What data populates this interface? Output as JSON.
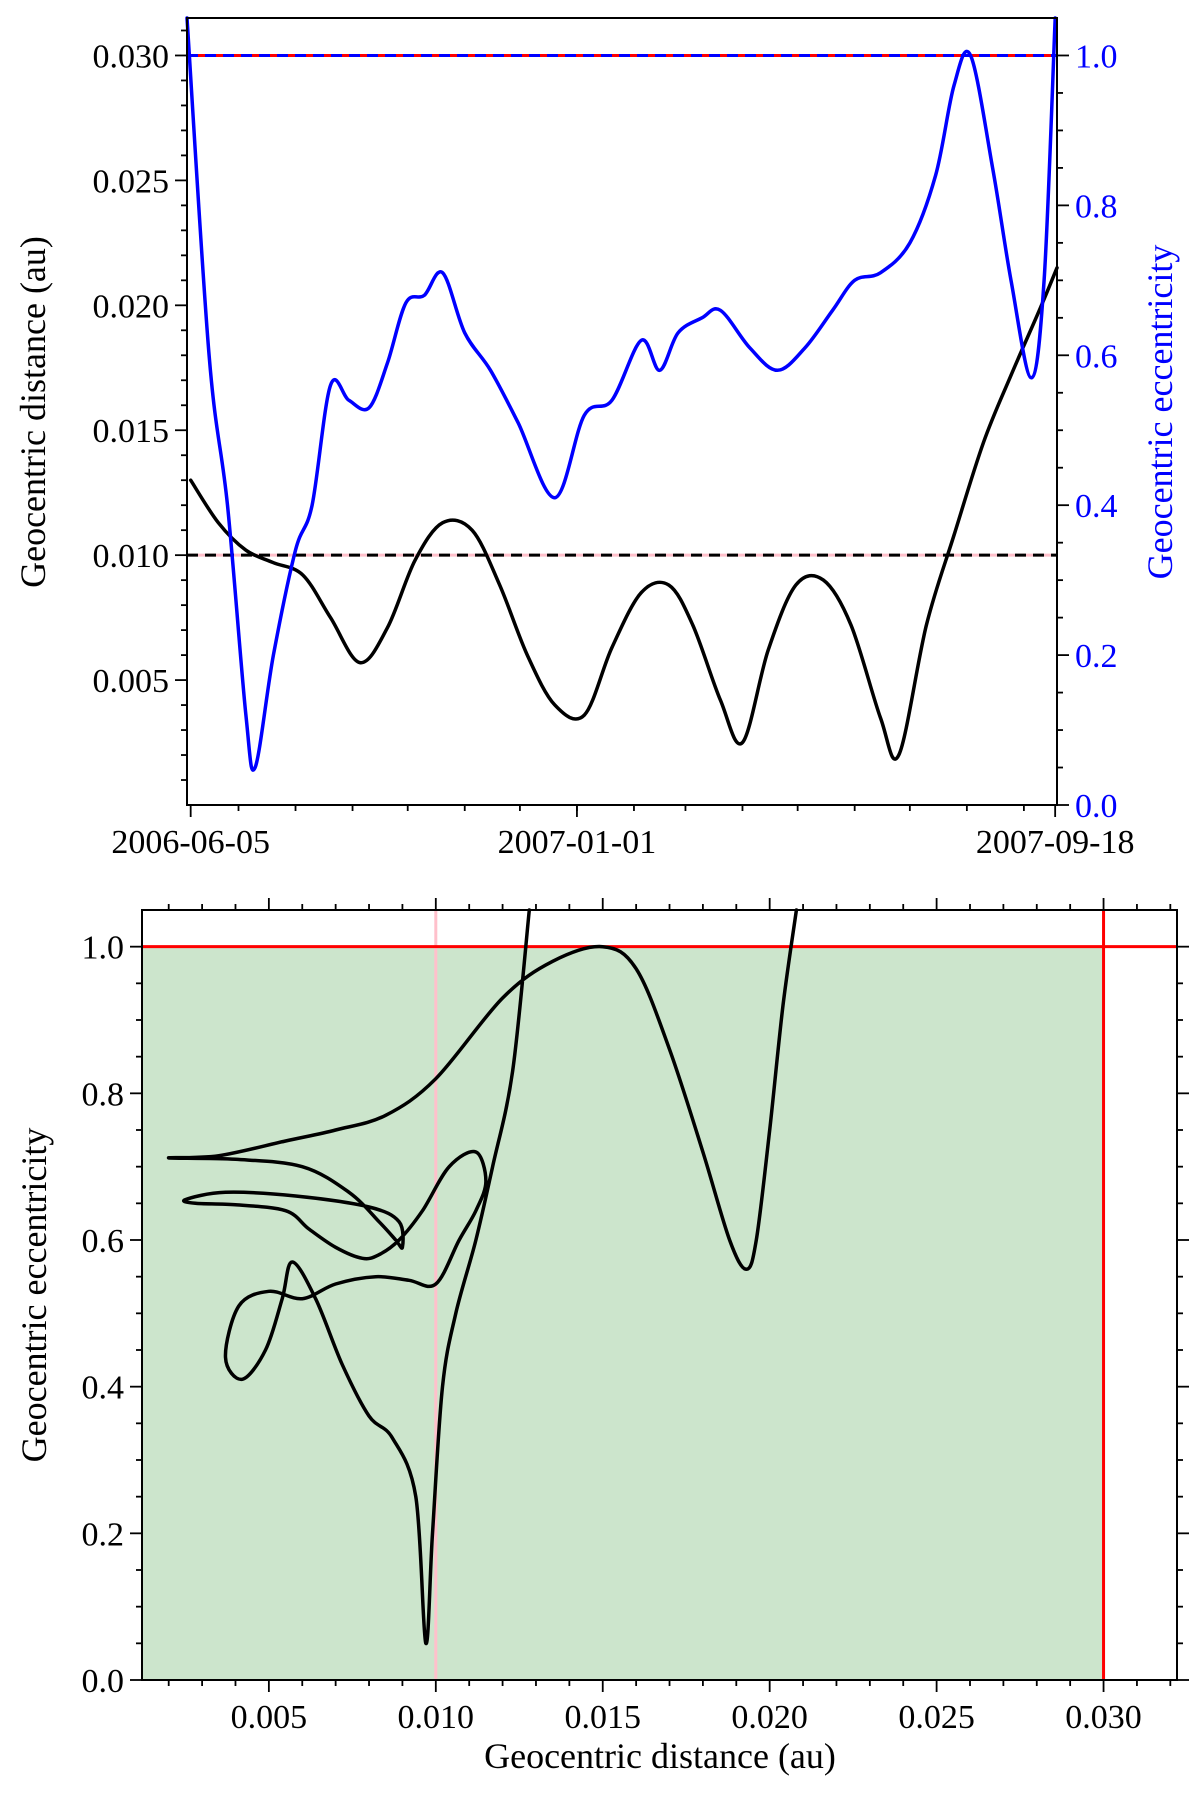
{
  "chart_data": [
    {
      "type": "line",
      "xlabel": "",
      "ylabel": "Geocentric distance (au)",
      "y2label": "Geocentric eccentricity",
      "xlim": [
        "2006-06-03",
        "2007-09-19"
      ],
      "ylim": [
        0,
        0.0315
      ],
      "y2lim": [
        0,
        1.05
      ],
      "xtick_labels": [
        "2006-06-05",
        "2007-01-01",
        "2007-09-18"
      ],
      "yticks": [
        0.005,
        0.01,
        0.015,
        0.02,
        0.025,
        0.03
      ],
      "y2ticks": [
        0.0,
        0.2,
        0.4,
        0.6,
        0.8,
        1.0
      ],
      "reference_lines": [
        {
          "axis": "y",
          "value": 0.03,
          "color": "#ff0000",
          "style": "solid"
        },
        {
          "axis": "y",
          "value": 0.03,
          "color": "#0000ff",
          "style": "dashed"
        },
        {
          "axis": "y",
          "value": 0.01,
          "color": "#ffc0cb",
          "style": "solid"
        },
        {
          "axis": "y",
          "value": 0.01,
          "color": "#000000",
          "style": "dashed"
        }
      ],
      "series": [
        {
          "axis": "left",
          "color": "#000000",
          "points": [
            [
              "2006-06-05",
              0.013
            ],
            [
              "2006-06-20",
              0.0113
            ],
            [
              "2006-07-05",
              0.0102
            ],
            [
              "2006-07-20",
              0.0097
            ],
            [
              "2006-08-05",
              0.0092
            ],
            [
              "2006-08-20",
              0.0075
            ],
            [
              "2006-09-05",
              0.0057
            ],
            [
              "2006-09-20",
              0.0071
            ],
            [
              "2006-10-05",
              0.0098
            ],
            [
              "2006-10-20",
              0.0113
            ],
            [
              "2006-11-05",
              0.011
            ],
            [
              "2006-11-20",
              0.0088
            ],
            [
              "2006-12-05",
              0.006
            ],
            [
              "2006-12-20",
              0.004
            ],
            [
              "2007-01-05",
              0.0036
            ],
            [
              "2007-01-20",
              0.0063
            ],
            [
              "2007-02-05",
              0.0085
            ],
            [
              "2007-02-20",
              0.0088
            ],
            [
              "2007-03-05",
              0.0072
            ],
            [
              "2007-03-20",
              0.0042
            ],
            [
              "2007-04-01",
              0.0025
            ],
            [
              "2007-04-15",
              0.0062
            ],
            [
              "2007-04-30",
              0.0088
            ],
            [
              "2007-05-15",
              0.009
            ],
            [
              "2007-05-30",
              0.0072
            ],
            [
              "2007-06-15",
              0.0035
            ],
            [
              "2007-06-25",
              0.002
            ],
            [
              "2007-07-10",
              0.0072
            ],
            [
              "2007-07-25",
              0.0108
            ],
            [
              "2007-08-10",
              0.0145
            ],
            [
              "2007-08-25",
              0.0172
            ],
            [
              "2007-09-10",
              0.0199
            ],
            [
              "2007-09-19",
              0.0215
            ]
          ]
        },
        {
          "axis": "right",
          "color": "#0000ff",
          "points": [
            [
              "2006-06-03",
              1.05
            ],
            [
              "2006-06-15",
              0.6
            ],
            [
              "2006-06-25",
              0.4
            ],
            [
              "2006-07-05",
              0.12
            ],
            [
              "2006-07-10",
              0.05
            ],
            [
              "2006-07-20",
              0.2
            ],
            [
              "2006-08-01",
              0.34
            ],
            [
              "2006-08-10",
              0.4
            ],
            [
              "2006-08-20",
              0.56
            ],
            [
              "2006-08-30",
              0.54
            ],
            [
              "2006-09-10",
              0.53
            ],
            [
              "2006-09-20",
              0.59
            ],
            [
              "2006-09-30",
              0.67
            ],
            [
              "2006-10-10",
              0.68
            ],
            [
              "2006-10-20",
              0.71
            ],
            [
              "2006-11-01",
              0.63
            ],
            [
              "2006-11-15",
              0.58
            ],
            [
              "2006-11-30",
              0.51
            ],
            [
              "2006-12-20",
              0.41
            ],
            [
              "2007-01-05",
              0.52
            ],
            [
              "2007-01-20",
              0.54
            ],
            [
              "2007-02-05",
              0.62
            ],
            [
              "2007-02-15",
              0.58
            ],
            [
              "2007-02-25",
              0.63
            ],
            [
              "2007-03-10",
              0.65
            ],
            [
              "2007-03-20",
              0.66
            ],
            [
              "2007-04-05",
              0.61
            ],
            [
              "2007-04-20",
              0.58
            ],
            [
              "2007-05-05",
              0.61
            ],
            [
              "2007-05-20",
              0.66
            ],
            [
              "2007-06-01",
              0.7
            ],
            [
              "2007-06-15",
              0.71
            ],
            [
              "2007-07-01",
              0.75
            ],
            [
              "2007-07-15",
              0.84
            ],
            [
              "2007-07-25",
              0.96
            ],
            [
              "2007-08-03",
              1.0
            ],
            [
              "2007-08-15",
              0.85
            ],
            [
              "2007-08-25",
              0.7
            ],
            [
              "2007-09-05",
              0.57
            ],
            [
              "2007-09-12",
              0.7
            ],
            [
              "2007-09-18",
              1.05
            ]
          ]
        }
      ]
    },
    {
      "type": "line",
      "xlabel": "Geocentric distance (au)",
      "ylabel": "Geocentric eccentricity",
      "xlim": [
        0.0012,
        0.0322
      ],
      "ylim": [
        0,
        1.05
      ],
      "xticks": [
        0.005,
        0.01,
        0.015,
        0.02,
        0.025,
        0.03
      ],
      "xtick_labels": [
        "0.005",
        "0.010",
        "0.015",
        "0.020",
        "0.025",
        "0.030"
      ],
      "yticks": [
        0.0,
        0.2,
        0.4,
        0.6,
        0.8,
        1.0
      ],
      "ytick_labels": [
        "0.0",
        "0.2",
        "0.4",
        "0.6",
        "0.8",
        "1.0"
      ],
      "shaded_region": {
        "x": [
          0.0012,
          0.03
        ],
        "y": [
          0,
          1.0
        ],
        "color": "#cce5cc"
      },
      "reference_lines": [
        {
          "axis": "x",
          "value": 0.03,
          "color": "#ff0000"
        },
        {
          "axis": "x",
          "value": 0.01,
          "color": "#ffc0cb"
        },
        {
          "axis": "y",
          "value": 1.0,
          "color": "#ff0000"
        }
      ],
      "series": [
        {
          "color": "#000000",
          "points": [
            [
              0.0128,
              1.05
            ],
            [
              0.0123,
              0.83
            ],
            [
              0.0117,
              0.7
            ],
            [
              0.0112,
              0.6
            ],
            [
              0.0106,
              0.5
            ],
            [
              0.0102,
              0.4
            ],
            [
              0.0099,
              0.2
            ],
            [
              0.0097,
              0.05
            ],
            [
              0.0094,
              0.25
            ],
            [
              0.0087,
              0.33
            ],
            [
              0.008,
              0.36
            ],
            [
              0.0072,
              0.43
            ],
            [
              0.0064,
              0.52
            ],
            [
              0.0057,
              0.57
            ],
            [
              0.0054,
              0.52
            ],
            [
              0.0049,
              0.45
            ],
            [
              0.0042,
              0.41
            ],
            [
              0.0037,
              0.44
            ],
            [
              0.0041,
              0.51
            ],
            [
              0.005,
              0.53
            ],
            [
              0.006,
              0.52
            ],
            [
              0.007,
              0.54
            ],
            [
              0.0082,
              0.55
            ],
            [
              0.0092,
              0.545
            ],
            [
              0.01,
              0.54
            ],
            [
              0.0107,
              0.6
            ],
            [
              0.0112,
              0.64
            ],
            [
              0.0115,
              0.68
            ],
            [
              0.0112,
              0.72
            ],
            [
              0.0104,
              0.7
            ],
            [
              0.0096,
              0.64
            ],
            [
              0.0089,
              0.6
            ],
            [
              0.0083,
              0.58
            ],
            [
              0.0078,
              0.575
            ],
            [
              0.007,
              0.59
            ],
            [
              0.0062,
              0.615
            ],
            [
              0.0055,
              0.64
            ],
            [
              0.004,
              0.648
            ],
            [
              0.0028,
              0.65
            ],
            [
              0.0025,
              0.655
            ],
            [
              0.0037,
              0.665
            ],
            [
              0.0058,
              0.66
            ],
            [
              0.008,
              0.645
            ],
            [
              0.0089,
              0.625
            ],
            [
              0.009,
              0.59
            ],
            [
              0.0088,
              0.6
            ],
            [
              0.0083,
              0.625
            ],
            [
              0.0074,
              0.665
            ],
            [
              0.006,
              0.7
            ],
            [
              0.004,
              0.71
            ],
            [
              0.002,
              0.712
            ],
            [
              0.0035,
              0.715
            ],
            [
              0.0055,
              0.735
            ],
            [
              0.007,
              0.75
            ],
            [
              0.0085,
              0.77
            ],
            [
              0.01,
              0.82
            ],
            [
              0.012,
              0.93
            ],
            [
              0.0135,
              0.98
            ],
            [
              0.015,
              1.0
            ],
            [
              0.016,
              0.97
            ],
            [
              0.017,
              0.86
            ],
            [
              0.018,
              0.72
            ],
            [
              0.0188,
              0.6
            ],
            [
              0.0193,
              0.56
            ],
            [
              0.0196,
              0.6
            ],
            [
              0.02,
              0.75
            ],
            [
              0.0204,
              0.92
            ],
            [
              0.0208,
              1.05
            ]
          ]
        }
      ]
    }
  ]
}
